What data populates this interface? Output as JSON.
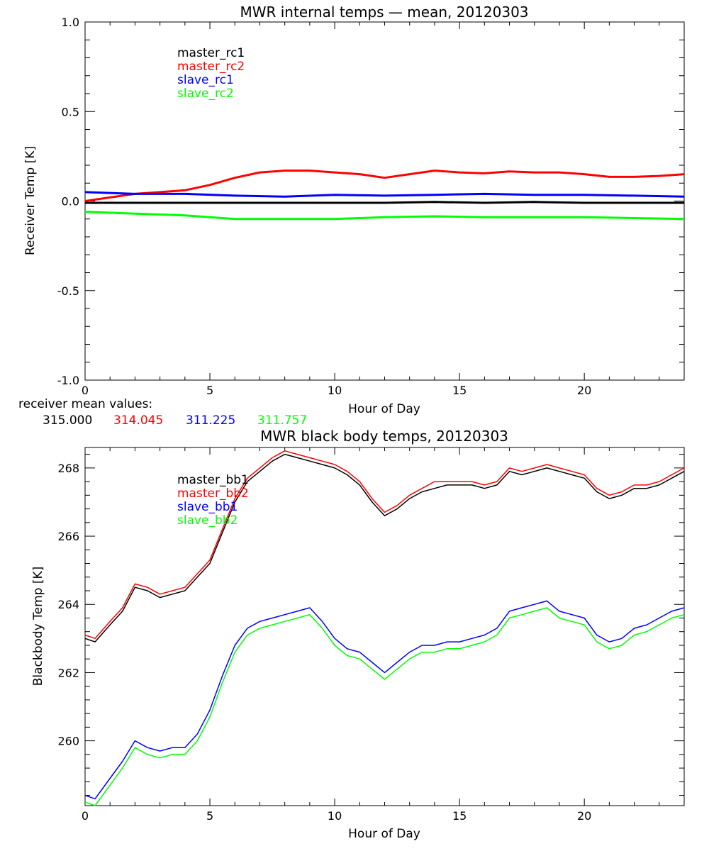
{
  "chart_data": [
    {
      "type": "line",
      "title": "MWR internal temps — mean, 20120303",
      "xlabel": "Hour of Day",
      "ylabel": "Receiver Temp [K]",
      "xlim": [
        0,
        24
      ],
      "ylim": [
        -1.0,
        1.0
      ],
      "xticks": [
        0,
        5,
        10,
        15,
        20
      ],
      "xtick_labels": [
        "0",
        "5",
        "10",
        "15",
        "20"
      ],
      "yticks": [
        -1.0,
        -0.5,
        0.0,
        0.5,
        1.0
      ],
      "ytick_labels": [
        "-1.0",
        "-0.5",
        "0.0",
        "0.5",
        "1.0"
      ],
      "grid": false,
      "legend_position": "top-left",
      "series": [
        {
          "name": "master_rc1",
          "color": "#000000",
          "x": [
            0,
            2,
            4,
            6,
            8,
            10,
            12,
            14,
            16,
            18,
            20,
            22,
            24
          ],
          "y": [
            -0.01,
            -0.01,
            -0.01,
            -0.01,
            -0.01,
            -0.01,
            -0.01,
            -0.005,
            -0.01,
            -0.005,
            -0.01,
            -0.01,
            -0.01
          ]
        },
        {
          "name": "master_rc2",
          "color": "#ff0000",
          "x": [
            0,
            1,
            2,
            3,
            4,
            5,
            6,
            7,
            8,
            9,
            10,
            11,
            12,
            13,
            14,
            15,
            16,
            17,
            18,
            19,
            20,
            21,
            22,
            23,
            24
          ],
          "y": [
            0.0,
            0.02,
            0.04,
            0.05,
            0.06,
            0.09,
            0.13,
            0.16,
            0.17,
            0.17,
            0.16,
            0.15,
            0.13,
            0.15,
            0.17,
            0.16,
            0.155,
            0.165,
            0.16,
            0.16,
            0.15,
            0.135,
            0.135,
            0.14,
            0.15
          ]
        },
        {
          "name": "slave_rc1",
          "color": "#0000ff",
          "x": [
            0,
            2,
            4,
            6,
            8,
            10,
            12,
            14,
            16,
            18,
            20,
            22,
            24
          ],
          "y": [
            0.05,
            0.04,
            0.04,
            0.03,
            0.025,
            0.035,
            0.03,
            0.035,
            0.04,
            0.035,
            0.035,
            0.03,
            0.025
          ]
        },
        {
          "name": "slave_rc2",
          "color": "#00ff00",
          "x": [
            0,
            2,
            4,
            6,
            8,
            10,
            12,
            14,
            16,
            18,
            20,
            22,
            24
          ],
          "y": [
            -0.06,
            -0.07,
            -0.08,
            -0.1,
            -0.1,
            -0.1,
            -0.09,
            -0.085,
            -0.09,
            -0.09,
            -0.09,
            -0.095,
            -0.1
          ]
        }
      ],
      "annotation_label": "receiver mean values:",
      "mean_values": [
        {
          "text": "315.000",
          "color": "#000000"
        },
        {
          "text": "314.045",
          "color": "#ff0000"
        },
        {
          "text": "311.225",
          "color": "#0000ff"
        },
        {
          "text": "311.757",
          "color": "#00ff00"
        }
      ]
    },
    {
      "type": "line",
      "title": "MWR black body temps, 20120303",
      "xlabel": "Hour of Day",
      "ylabel": "Blackbody Temp [K]",
      "xlim": [
        0,
        24
      ],
      "ylim": [
        258.1,
        268.6
      ],
      "xticks": [
        0,
        5,
        10,
        15,
        20
      ],
      "xtick_labels": [
        "0",
        "5",
        "10",
        "15",
        "20"
      ],
      "yticks": [
        260,
        262,
        264,
        266,
        268
      ],
      "ytick_labels": [
        "260",
        "262",
        "264",
        "266",
        "268"
      ],
      "grid": false,
      "legend_position": "top-left",
      "series": [
        {
          "name": "master_bb1",
          "color": "#000000",
          "x": [
            0,
            0.4,
            1,
            1.5,
            2,
            2.5,
            3,
            3.5,
            4,
            4.5,
            5,
            5.5,
            6,
            6.5,
            7,
            7.5,
            8,
            8.5,
            9,
            9.5,
            10,
            10.5,
            11,
            11.5,
            12,
            12.5,
            13,
            13.5,
            14,
            14.5,
            15,
            15.5,
            16,
            16.5,
            17,
            17.5,
            18,
            18.5,
            19,
            19.5,
            20,
            20.5,
            21,
            21.5,
            22,
            22.5,
            23,
            23.5,
            24
          ],
          "y": [
            263.0,
            262.9,
            263.4,
            263.8,
            264.5,
            264.4,
            264.2,
            264.3,
            264.4,
            264.8,
            265.2,
            266.1,
            267.0,
            267.6,
            267.9,
            268.2,
            268.4,
            268.3,
            268.2,
            268.1,
            268.0,
            267.8,
            267.5,
            267.0,
            266.6,
            266.8,
            267.1,
            267.3,
            267.4,
            267.5,
            267.5,
            267.5,
            267.4,
            267.5,
            267.9,
            267.8,
            267.9,
            268.0,
            267.9,
            267.8,
            267.7,
            267.3,
            267.1,
            267.2,
            267.4,
            267.4,
            267.5,
            267.7,
            267.9
          ]
        },
        {
          "name": "master_bb2",
          "color": "#ff0000",
          "x": [
            0,
            0.4,
            1,
            1.5,
            2,
            2.5,
            3,
            3.5,
            4,
            4.5,
            5,
            5.5,
            6,
            6.5,
            7,
            7.5,
            8,
            8.5,
            9,
            9.5,
            10,
            10.5,
            11,
            11.5,
            12,
            12.5,
            13,
            13.5,
            14,
            14.5,
            15,
            15.5,
            16,
            16.5,
            17,
            17.5,
            18,
            18.5,
            19,
            19.5,
            20,
            20.5,
            21,
            21.5,
            22,
            22.5,
            23,
            23.5,
            24
          ],
          "y": [
            263.1,
            263.0,
            263.5,
            263.9,
            264.6,
            264.5,
            264.3,
            264.4,
            264.5,
            264.9,
            265.3,
            266.2,
            267.1,
            267.7,
            268.0,
            268.3,
            268.5,
            268.4,
            268.3,
            268.2,
            268.1,
            267.9,
            267.6,
            267.1,
            266.7,
            266.9,
            267.2,
            267.4,
            267.6,
            267.6,
            267.6,
            267.6,
            267.5,
            267.6,
            268.0,
            267.9,
            268.0,
            268.1,
            268.0,
            267.9,
            267.8,
            267.4,
            267.2,
            267.3,
            267.5,
            267.5,
            267.6,
            267.8,
            268.0
          ]
        },
        {
          "name": "slave_bb1",
          "color": "#0000ff",
          "x": [
            0,
            0.4,
            1,
            1.5,
            2,
            2.5,
            3,
            3.5,
            4,
            4.5,
            5,
            5.5,
            6,
            6.5,
            7,
            7.5,
            8,
            8.5,
            9,
            9.5,
            10,
            10.5,
            11,
            11.5,
            12,
            12.5,
            13,
            13.5,
            14,
            14.5,
            15,
            15.5,
            16,
            16.5,
            17,
            17.5,
            18,
            18.5,
            19,
            19.5,
            20,
            20.5,
            21,
            21.5,
            22,
            22.5,
            23,
            23.5,
            24
          ],
          "y": [
            258.4,
            258.3,
            258.9,
            259.4,
            260.0,
            259.8,
            259.7,
            259.8,
            259.8,
            260.2,
            260.9,
            261.9,
            262.8,
            263.3,
            263.5,
            263.6,
            263.7,
            263.8,
            263.9,
            263.5,
            263.0,
            262.7,
            262.6,
            262.3,
            262.0,
            262.3,
            262.6,
            262.8,
            262.8,
            262.9,
            262.9,
            263.0,
            263.1,
            263.3,
            263.8,
            263.9,
            264.0,
            264.1,
            263.8,
            263.7,
            263.6,
            263.1,
            262.9,
            263.0,
            263.3,
            263.4,
            263.6,
            263.8,
            263.9
          ]
        },
        {
          "name": "slave_bb2",
          "color": "#00ff00",
          "x": [
            0,
            0.4,
            1,
            1.5,
            2,
            2.5,
            3,
            3.5,
            4,
            4.5,
            5,
            5.5,
            6,
            6.5,
            7,
            7.5,
            8,
            8.5,
            9,
            9.5,
            10,
            10.5,
            11,
            11.5,
            12,
            12.5,
            13,
            13.5,
            14,
            14.5,
            15,
            15.5,
            16,
            16.5,
            17,
            17.5,
            18,
            18.5,
            19,
            19.5,
            20,
            20.5,
            21,
            21.5,
            22,
            22.5,
            23,
            23.5,
            24
          ],
          "y": [
            258.2,
            258.1,
            258.7,
            259.2,
            259.8,
            259.6,
            259.5,
            259.6,
            259.6,
            260.0,
            260.7,
            261.7,
            262.6,
            263.1,
            263.3,
            263.4,
            263.5,
            263.6,
            263.7,
            263.3,
            262.8,
            262.5,
            262.4,
            262.1,
            261.8,
            262.1,
            262.4,
            262.6,
            262.6,
            262.7,
            262.7,
            262.8,
            262.9,
            263.1,
            263.6,
            263.7,
            263.8,
            263.9,
            263.6,
            263.5,
            263.4,
            262.9,
            262.7,
            262.8,
            263.1,
            263.2,
            263.4,
            263.6,
            263.7
          ]
        }
      ]
    }
  ]
}
